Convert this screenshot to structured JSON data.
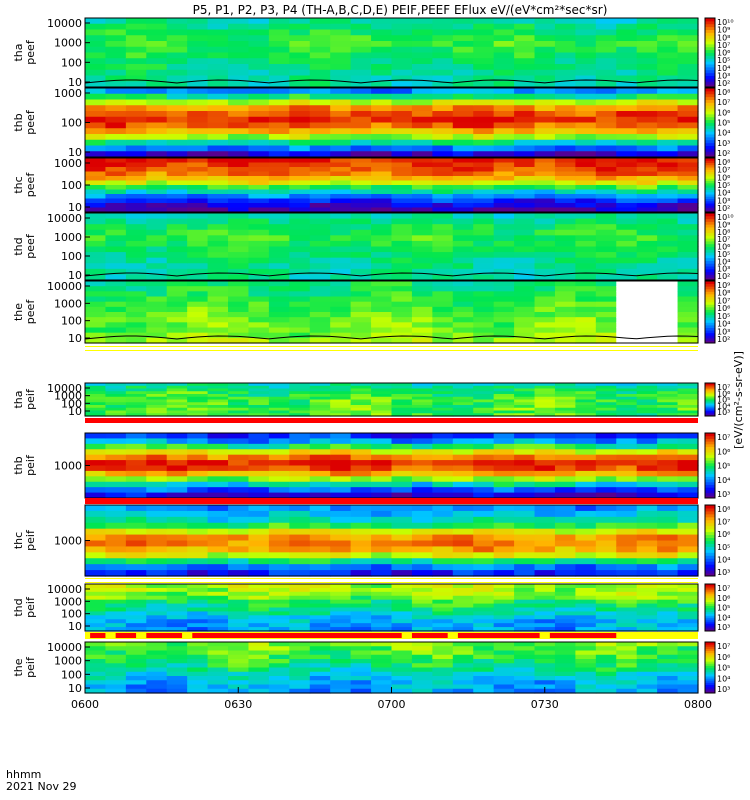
{
  "title": "P5, P1, P2, P3, P4 (TH-A,B,C,D,E) PEIF,PEEF EFlux eV/(eV*cm²*sec*sr)",
  "colorbar_label": "[eV/(cm²-s-sr-eV)]",
  "time_axis": {
    "label_line1": "hhmm",
    "label_line2": "2021 Nov 29",
    "ticks": [
      "0600",
      "0630",
      "0700",
      "0730",
      "0800"
    ]
  },
  "chart_data": [
    {
      "type": "heatmap",
      "probe": "tha",
      "ylabel": [
        "tha",
        "peef"
      ],
      "yscale": "log",
      "yticks": [
        "10",
        "100",
        "1000",
        "10000"
      ],
      "colorbar_ticks": [
        "10²",
        "10³",
        "10⁴",
        "10⁵",
        "10⁶",
        "10⁷",
        "10⁸",
        "10⁹",
        "10¹⁰"
      ],
      "colorbar_range": [
        1,
        10
      ],
      "level_profile": [
        4.8,
        5.4,
        5.9,
        5.6,
        5.2,
        5.0,
        4.9
      ],
      "has_line": true
    },
    {
      "type": "heatmap",
      "probe": "thb",
      "ylabel": [
        "thb",
        "peef"
      ],
      "yscale": "log",
      "yticks": [
        "10",
        "100",
        "1000"
      ],
      "colorbar_ticks": [
        "10²",
        "10³",
        "10⁴",
        "10⁵",
        "10⁶",
        "10⁷",
        "10⁸"
      ],
      "colorbar_range": [
        1,
        8
      ],
      "level_profile": [
        3.0,
        5.0,
        7.0,
        7.8,
        7.2,
        5.5,
        3.5,
        1.5
      ],
      "has_line": false
    },
    {
      "type": "heatmap",
      "probe": "thc",
      "ylabel": [
        "thc",
        "peef"
      ],
      "yscale": "log",
      "yticks": [
        "10",
        "100",
        "1000"
      ],
      "colorbar_ticks": [
        "10²",
        "10³",
        "10⁴",
        "10⁵",
        "10⁶",
        "10⁷",
        "10⁸"
      ],
      "colorbar_range": [
        1,
        8
      ],
      "level_profile": [
        7.8,
        7.6,
        7.0,
        6.0,
        4.5,
        3.0,
        1.8,
        1.2
      ],
      "has_line": false
    },
    {
      "type": "heatmap",
      "probe": "thd",
      "ylabel": [
        "thd",
        "peef"
      ],
      "yscale": "log",
      "yticks": [
        "10",
        "100",
        "1000",
        "10000"
      ],
      "colorbar_ticks": [
        "10²",
        "10³",
        "10⁴",
        "10⁵",
        "10⁶",
        "10⁷",
        "10⁸",
        "10⁹",
        "10¹⁰"
      ],
      "colorbar_range": [
        1,
        10
      ],
      "level_profile": [
        4.8,
        5.6,
        5.8,
        5.3,
        5.0,
        4.9
      ],
      "has_line": true
    },
    {
      "type": "heatmap",
      "probe": "the",
      "ylabel": [
        "the",
        "peef"
      ],
      "yscale": "log",
      "yticks": [
        "10",
        "100",
        "1000",
        "10000"
      ],
      "colorbar_ticks": [
        "10²",
        "10³",
        "10⁴",
        "10⁵",
        "10⁶",
        "10⁷",
        "10⁸",
        "10⁹"
      ],
      "colorbar_range": [
        1,
        9
      ],
      "level_profile": [
        4.8,
        5.0,
        5.4,
        5.6,
        5.6,
        6.0
      ],
      "gap_time": [
        "0746",
        "0756"
      ],
      "has_line": true
    },
    {
      "type": "heatmap",
      "probe": "tha",
      "ylabel": [
        "tha",
        "peif"
      ],
      "yscale": "log",
      "yticks": [
        "10",
        "100",
        "1000",
        "10000"
      ],
      "colorbar_ticks": [
        "10³",
        "10⁴",
        "10⁵",
        "10⁶",
        "10⁷"
      ],
      "colorbar_range": [
        2,
        8
      ],
      "level_profile": [
        4.5,
        5.0,
        5.2,
        5.3,
        5.3,
        5.2
      ],
      "has_line": false
    },
    {
      "type": "heatmap",
      "probe": "thb",
      "ylabel": [
        "thb",
        "peif"
      ],
      "yscale": "log",
      "yticks": [
        "1000"
      ],
      "colorbar_ticks": [
        "10³",
        "10⁴",
        "10⁵",
        "10⁶",
        "10⁷"
      ],
      "colorbar_range": [
        2,
        8
      ],
      "level_profile": [
        3.0,
        4.0,
        5.5,
        7.0,
        7.8,
        7.5,
        6.5,
        5.0,
        3.5,
        2.5
      ],
      "has_line": false
    },
    {
      "type": "heatmap",
      "probe": "thc",
      "ylabel": [
        "thc",
        "peif"
      ],
      "yscale": "log",
      "yticks": [
        "1000"
      ],
      "colorbar_ticks": [
        "10³",
        "10⁴",
        "10⁵",
        "10⁶",
        "10⁷",
        "10⁸"
      ],
      "colorbar_range": [
        2,
        9
      ],
      "level_profile": [
        4.0,
        4.5,
        5.0,
        6.5,
        7.8,
        8.0,
        7.5,
        6.0,
        4.0,
        3.0
      ],
      "has_line": false
    },
    {
      "type": "heatmap",
      "probe": "thd",
      "ylabel": [
        "thd",
        "peif"
      ],
      "yscale": "log",
      "yticks": [
        "10",
        "100",
        "1000",
        "10000"
      ],
      "colorbar_ticks": [
        "10³",
        "10⁴",
        "10⁵",
        "10⁶",
        "10⁷"
      ],
      "colorbar_range": [
        2,
        8
      ],
      "level_profile": [
        5.8,
        5.6,
        5.0,
        4.5,
        4.0,
        3.8
      ],
      "has_line": false
    },
    {
      "type": "heatmap",
      "probe": "the",
      "ylabel": [
        "the",
        "peif"
      ],
      "yscale": "log",
      "yticks": [
        "10",
        "100",
        "1000",
        "10000"
      ],
      "colorbar_ticks": [
        "10³",
        "10⁴",
        "10⁵",
        "10⁶",
        "10⁷"
      ],
      "colorbar_range": [
        2,
        8
      ],
      "level_profile": [
        5.5,
        5.2,
        5.0,
        4.5,
        4.0,
        3.8
      ],
      "has_line": false
    }
  ],
  "mode_bars": [
    {
      "after_panel": 4,
      "color": "#ffff00",
      "segments": [
        {
          "start": "0600",
          "end": "0800",
          "color": "#ffffff"
        }
      ]
    },
    {
      "after_panel": 5,
      "color": "#ff0000",
      "segments": []
    },
    {
      "after_panel": 6,
      "color": "#ff0000",
      "segments": []
    },
    {
      "after_panel": 7,
      "color": "#ffff00",
      "segments": [
        {
          "start": "0600",
          "end": "0800",
          "color": "#ffffff"
        }
      ]
    },
    {
      "after_panel": 8,
      "color": "#ffff00",
      "segments": [
        {
          "start": "0601",
          "end": "0604",
          "color": "#ff0000"
        },
        {
          "start": "0606",
          "end": "0610",
          "color": "#ff0000"
        },
        {
          "start": "0612",
          "end": "0619",
          "color": "#ff0000"
        },
        {
          "start": "0621",
          "end": "0702",
          "color": "#ff0000"
        },
        {
          "start": "0704",
          "end": "0711",
          "color": "#ff0000"
        },
        {
          "start": "0713",
          "end": "0729",
          "color": "#ff0000"
        },
        {
          "start": "0731",
          "end": "0744",
          "color": "#ff0000"
        }
      ]
    }
  ]
}
